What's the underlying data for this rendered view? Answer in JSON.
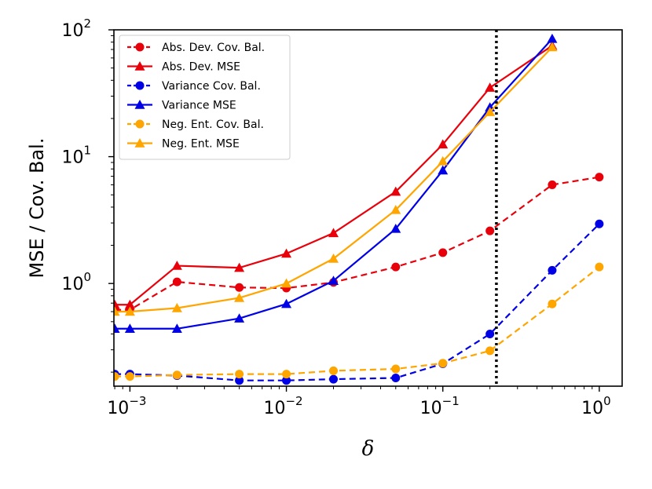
{
  "chart_data": {
    "type": "line",
    "title": "",
    "xlabel": "δ",
    "ylabel": "MSE / Cov. Bal.",
    "xscale": "log",
    "yscale": "log",
    "xlim": [
      0.00079,
      1.4
    ],
    "ylim": [
      0.155,
      100
    ],
    "x_ticks": [
      {
        "value": 0.001,
        "base": "10",
        "exp": "−3"
      },
      {
        "value": 0.01,
        "base": "10",
        "exp": "−2"
      },
      {
        "value": 0.1,
        "base": "10",
        "exp": "−1"
      },
      {
        "value": 1,
        "base": "10",
        "exp": "0"
      }
    ],
    "y_ticks": [
      {
        "value": 1,
        "base": "10",
        "exp": "0"
      },
      {
        "value": 10,
        "base": "10",
        "exp": "1"
      },
      {
        "value": 100,
        "base": "10",
        "exp": "2"
      }
    ],
    "vline": {
      "x": 0.22,
      "style": "dotted",
      "color": "#000000"
    },
    "legend_position": "top-left",
    "series": [
      {
        "name": "Abs. Dev. Cov. Bal.",
        "color": "#e8000b",
        "linestyle": "dashed",
        "marker": "circle",
        "x": [
          0.0008,
          0.001,
          0.002,
          0.005,
          0.01,
          0.02,
          0.05,
          0.1,
          0.2,
          0.5,
          1.0
        ],
        "y": [
          0.62,
          0.62,
          1.03,
          0.93,
          0.92,
          1.02,
          1.35,
          1.75,
          2.6,
          6.0,
          6.9
        ]
      },
      {
        "name": "Abs. Dev. MSE",
        "color": "#e8000b",
        "linestyle": "solid",
        "marker": "triangle",
        "x": [
          0.0008,
          0.001,
          0.002,
          0.005,
          0.01,
          0.02,
          0.05,
          0.1,
          0.2,
          0.5
        ],
        "y": [
          0.68,
          0.68,
          1.38,
          1.33,
          1.72,
          2.5,
          5.3,
          12.5,
          35,
          75
        ]
      },
      {
        "name": "Variance Cov. Bal.",
        "color": "#0000e6",
        "linestyle": "dashed",
        "marker": "circle",
        "x": [
          0.0008,
          0.001,
          0.002,
          0.005,
          0.01,
          0.02,
          0.05,
          0.1,
          0.2,
          0.5,
          1.0
        ],
        "y": [
          0.193,
          0.193,
          0.188,
          0.172,
          0.172,
          0.176,
          0.18,
          0.233,
          0.4,
          1.27,
          2.95
        ]
      },
      {
        "name": "Variance MSE",
        "color": "#0000e6",
        "linestyle": "solid",
        "marker": "triangle",
        "x": [
          0.0008,
          0.001,
          0.002,
          0.005,
          0.01,
          0.02,
          0.05,
          0.1,
          0.2,
          0.5
        ],
        "y": [
          0.44,
          0.44,
          0.44,
          0.53,
          0.69,
          1.05,
          2.7,
          7.8,
          24.5,
          85
        ]
      },
      {
        "name": "Neg. Ent. Cov. Bal.",
        "color": "#ffa500",
        "linestyle": "dashed",
        "marker": "circle",
        "x": [
          0.0008,
          0.001,
          0.002,
          0.005,
          0.01,
          0.02,
          0.05,
          0.1,
          0.2,
          0.5,
          1.0
        ],
        "y": [
          0.185,
          0.185,
          0.19,
          0.193,
          0.193,
          0.205,
          0.212,
          0.235,
          0.295,
          0.69,
          1.35
        ]
      },
      {
        "name": "Neg. Ent. MSE",
        "color": "#ffa500",
        "linestyle": "solid",
        "marker": "triangle",
        "x": [
          0.0008,
          0.001,
          0.002,
          0.005,
          0.01,
          0.02,
          0.05,
          0.1,
          0.2,
          0.5
        ],
        "y": [
          0.6,
          0.6,
          0.64,
          0.77,
          1.0,
          1.57,
          3.8,
          9.2,
          22.5,
          73
        ]
      }
    ]
  }
}
